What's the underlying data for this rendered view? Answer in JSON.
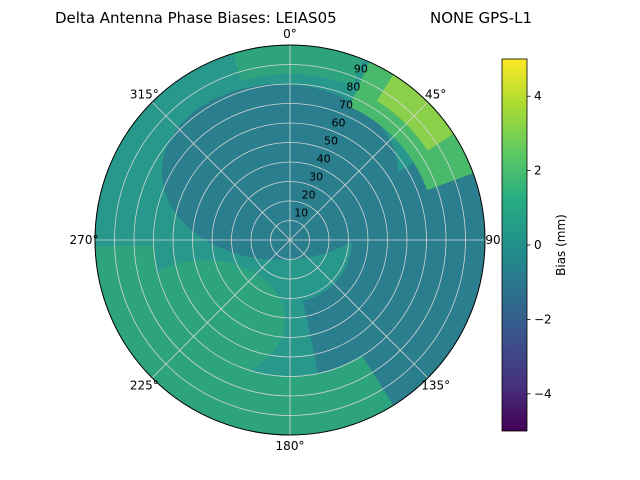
{
  "figure": {
    "title_left": "Delta Antenna Phase Biases: LEIAS05",
    "title_right": "NONE GPS-L1",
    "background_color": "#ffffff"
  },
  "chart_data": {
    "type": "heatmap",
    "projection": "polar",
    "title": "Delta Antenna Phase Biases: LEIAS05        NONE GPS-L1",
    "angular_unit": "degrees azimuth, clockwise from 0 at top",
    "angular_ticks": [
      {
        "angle_deg": 0,
        "label": "0°"
      },
      {
        "angle_deg": 45,
        "label": "45°"
      },
      {
        "angle_deg": 90,
        "label": "90°"
      },
      {
        "angle_deg": 135,
        "label": "135°"
      },
      {
        "angle_deg": 180,
        "label": "180°"
      },
      {
        "angle_deg": 225,
        "label": "225°"
      },
      {
        "angle_deg": 270,
        "label": "270°"
      },
      {
        "angle_deg": 315,
        "label": "315°"
      }
    ],
    "radial_ticks": [
      {
        "r": 10,
        "label": "10"
      },
      {
        "r": 20,
        "label": "20"
      },
      {
        "r": 30,
        "label": "30"
      },
      {
        "r": 40,
        "label": "40"
      },
      {
        "r": 50,
        "label": "50"
      },
      {
        "r": 60,
        "label": "60"
      },
      {
        "r": 70,
        "label": "70"
      },
      {
        "r": 80,
        "label": "80"
      },
      {
        "r": 90,
        "label": "90"
      }
    ],
    "radial_label_azimuth_deg": 22.5,
    "radial_range": [
      0,
      95
    ],
    "grid": {
      "visible": true,
      "color": "#d9d9d9",
      "ring_step": 10,
      "spoke_step_deg": 45
    },
    "colorbar": {
      "label": "Bias (mm)",
      "unit": "mm",
      "vmin": -5,
      "vmax": 5,
      "colormap": "viridis",
      "ticks": [
        {
          "value": 4,
          "label": "4"
        },
        {
          "value": 2,
          "label": "2"
        },
        {
          "value": 0,
          "label": "0"
        },
        {
          "value": -2,
          "label": "−2"
        },
        {
          "value": -4,
          "label": "−4"
        }
      ],
      "gradient_stops": [
        {
          "t": 0.0,
          "color": "#440154"
        },
        {
          "t": 0.125,
          "color": "#46327e"
        },
        {
          "t": 0.25,
          "color": "#3b528b"
        },
        {
          "t": 0.375,
          "color": "#2c718e"
        },
        {
          "t": 0.5,
          "color": "#21918c"
        },
        {
          "t": 0.625,
          "color": "#27ad81"
        },
        {
          "t": 0.75,
          "color": "#5ec962"
        },
        {
          "t": 0.875,
          "color": "#aadc32"
        },
        {
          "t": 1.0,
          "color": "#fde725"
        }
      ]
    },
    "bias_field_estimate": {
      "radii_deg": [
        10,
        30,
        50,
        70,
        90
      ],
      "series": [
        {
          "azimuth_deg": 0,
          "values": [
            -0.5,
            -0.5,
            -0.2,
            0.3,
            0.8
          ]
        },
        {
          "azimuth_deg": 45,
          "values": [
            -0.5,
            -0.3,
            0.3,
            1.2,
            2.5
          ]
        },
        {
          "azimuth_deg": 90,
          "values": [
            -0.5,
            -0.6,
            -0.6,
            -0.2,
            0.5
          ]
        },
        {
          "azimuth_deg": 135,
          "values": [
            -0.5,
            -0.5,
            -0.6,
            -0.4,
            0.3
          ]
        },
        {
          "azimuth_deg": 180,
          "values": [
            -0.5,
            -0.2,
            0.3,
            0.8,
            1.0
          ]
        },
        {
          "azimuth_deg": 225,
          "values": [
            -0.5,
            0.0,
            0.6,
            1.0,
            1.2
          ]
        },
        {
          "azimuth_deg": 270,
          "values": [
            -0.5,
            -0.6,
            -0.3,
            0.3,
            0.5
          ]
        },
        {
          "azimuth_deg": 315,
          "values": [
            -0.5,
            -0.7,
            -0.8,
            -0.5,
            0.3
          ]
        }
      ]
    },
    "palette_regions": [
      {
        "name": "base",
        "bias_mm": 0.2,
        "color": "#27988b"
      },
      {
        "name": "depression",
        "bias_mm": -0.8,
        "color": "#2b7e8d"
      },
      {
        "name": "enhanced",
        "bias_mm": 1.0,
        "color": "#2ea47e"
      },
      {
        "name": "hot_outer",
        "bias_mm": 1.8,
        "color": "#49b96c"
      },
      {
        "name": "hot_core",
        "bias_mm": 2.8,
        "color": "#8ad04a"
      }
    ]
  }
}
